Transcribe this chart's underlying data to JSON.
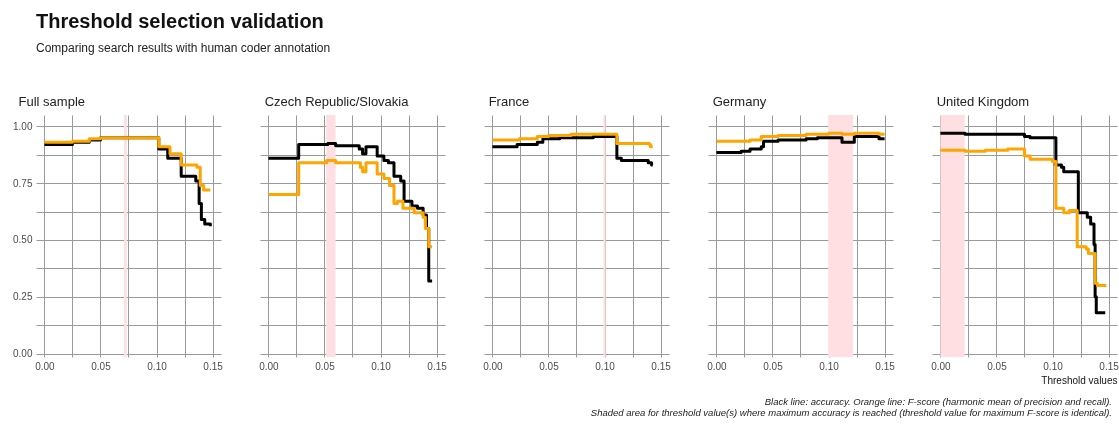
{
  "chart_data": [
    {
      "type": "other",
      "title": "Threshold selection validation",
      "subtitle": "Comparing search results with human coder annotation"
    },
    {
      "type": "step",
      "title": "Full sample",
      "xlim": [
        -0.0075,
        0.1575
      ],
      "ylim": [
        -0.015,
        1.05
      ],
      "xticks": [
        {
          "value": 0,
          "label": "0.00"
        },
        {
          "value": 0.025,
          "label": null
        },
        {
          "value": 0.05,
          "label": "0.05"
        },
        {
          "value": 0.075,
          "label": null
        },
        {
          "value": 0.1,
          "label": "0.10"
        },
        {
          "value": 0.125,
          "label": null
        },
        {
          "value": 0.15,
          "label": "0.15"
        }
      ],
      "yticks": [
        {
          "value": 0,
          "label": "0.00"
        },
        {
          "value": 0.125,
          "label": null
        },
        {
          "value": 0.25,
          "label": "0.25"
        },
        {
          "value": 0.375,
          "label": null
        },
        {
          "value": 0.5,
          "label": "0.50"
        },
        {
          "value": 0.625,
          "label": null
        },
        {
          "value": 0.75,
          "label": "0.75"
        },
        {
          "value": 0.875,
          "label": null
        },
        {
          "value": 1,
          "label": "1.00"
        }
      ],
      "grid": true,
      "bands": [
        {
          "axis": "x",
          "from": 0.071,
          "to": 0.0735,
          "color": "#ffdfe2"
        }
      ],
      "series": [
        {
          "color": "#000000",
          "x": [
            0,
            0.025,
            0.04,
            0.05,
            0.102,
            0.11,
            0.122,
            0.135,
            0.138,
            0.14,
            0.143,
            0.148
          ],
          "values": [
            0.92,
            0.93,
            0.94,
            0.95,
            0.9,
            0.86,
            0.78,
            0.76,
            0.66,
            0.59,
            0.57,
            0.56
          ]
        },
        {
          "color": "#ffa500",
          "x": [
            0,
            0.025,
            0.04,
            0.05,
            0.102,
            0.112,
            0.122,
            0.136,
            0.139,
            0.142,
            0.148
          ],
          "values": [
            0.93,
            0.935,
            0.945,
            0.95,
            0.91,
            0.88,
            0.83,
            0.82,
            0.74,
            0.72,
            0.72
          ]
        }
      ]
    },
    {
      "type": "step",
      "title": "Czech Republic/Slovakia",
      "xlim": [
        -0.0075,
        0.1575
      ],
      "ylim": [
        -0.015,
        1.05
      ],
      "tick_labels": "x",
      "xticks": [
        {
          "value": 0,
          "label": "0.00"
        },
        {
          "value": 0.025,
          "label": null
        },
        {
          "value": 0.05,
          "label": "0.05"
        },
        {
          "value": 0.075,
          "label": null
        },
        {
          "value": 0.1,
          "label": "0.10"
        },
        {
          "value": 0.125,
          "label": null
        },
        {
          "value": 0.15,
          "label": "0.15"
        }
      ],
      "yticks": [
        {
          "value": 0,
          "label": null
        },
        {
          "value": 0.125,
          "label": null
        },
        {
          "value": 0.25,
          "label": null
        },
        {
          "value": 0.375,
          "label": null
        },
        {
          "value": 0.5,
          "label": null
        },
        {
          "value": 0.625,
          "label": null
        },
        {
          "value": 0.75,
          "label": null
        },
        {
          "value": 0.875,
          "label": null
        },
        {
          "value": 1,
          "label": null
        }
      ],
      "grid": true,
      "bands": [
        {
          "axis": "x",
          "from": 0.0516,
          "to": 0.0599,
          "color": "#ffdfe2"
        }
      ],
      "series": [
        {
          "color": "#000000",
          "x": [
            0,
            0.027,
            0.053,
            0.06,
            0.081,
            0.084,
            0.087,
            0.097,
            0.103,
            0.107,
            0.112,
            0.118,
            0.121,
            0.128,
            0.133,
            0.138,
            0.141,
            0.143,
            0.146
          ],
          "values": [
            0.86,
            0.92,
            0.925,
            0.915,
            0.9,
            0.88,
            0.91,
            0.87,
            0.85,
            0.84,
            0.78,
            0.76,
            0.67,
            0.65,
            0.64,
            0.61,
            0.55,
            0.32,
            0.32
          ]
        },
        {
          "color": "#ffa500",
          "x": [
            0,
            0.027,
            0.052,
            0.06,
            0.082,
            0.084,
            0.087,
            0.097,
            0.103,
            0.108,
            0.112,
            0.115,
            0.12,
            0.13,
            0.138,
            0.14,
            0.143,
            0.146
          ],
          "values": [
            0.7,
            0.84,
            0.85,
            0.84,
            0.82,
            0.8,
            0.84,
            0.79,
            0.77,
            0.74,
            0.66,
            0.67,
            0.64,
            0.62,
            0.6,
            0.55,
            0.47,
            0.47
          ]
        }
      ]
    },
    {
      "type": "step",
      "title": "France",
      "xlim": [
        -0.0075,
        0.1575
      ],
      "ylim": [
        -0.015,
        1.05
      ],
      "tick_labels": "x",
      "xticks": [
        {
          "value": 0,
          "label": "0.00"
        },
        {
          "value": 0.025,
          "label": null
        },
        {
          "value": 0.05,
          "label": "0.05"
        },
        {
          "value": 0.075,
          "label": null
        },
        {
          "value": 0.1,
          "label": "0.10"
        },
        {
          "value": 0.125,
          "label": null
        },
        {
          "value": 0.15,
          "label": "0.15"
        }
      ],
      "yticks": [
        {
          "value": 0,
          "label": null
        },
        {
          "value": 0.125,
          "label": null
        },
        {
          "value": 0.25,
          "label": null
        },
        {
          "value": 0.375,
          "label": null
        },
        {
          "value": 0.5,
          "label": null
        },
        {
          "value": 0.625,
          "label": null
        },
        {
          "value": 0.75,
          "label": null
        },
        {
          "value": 0.875,
          "label": null
        },
        {
          "value": 1,
          "label": null
        }
      ],
      "grid": true,
      "bands": [
        {
          "axis": "x",
          "from": 0.099,
          "to": 0.101,
          "color": "#ffdfe2"
        }
      ],
      "series": [
        {
          "color": "#000000",
          "x": [
            0,
            0.022,
            0.04,
            0.045,
            0.06,
            0.09,
            0.111,
            0.115,
            0.135,
            0.139,
            0.142,
            0.143
          ],
          "values": [
            0.91,
            0.92,
            0.93,
            0.945,
            0.95,
            0.955,
            0.86,
            0.85,
            0.85,
            0.84,
            0.83,
            0.83
          ]
        },
        {
          "color": "#ffa500",
          "x": [
            0,
            0.024,
            0.04,
            0.05,
            0.07,
            0.111,
            0.14,
            0.141,
            0.143
          ],
          "values": [
            0.94,
            0.945,
            0.955,
            0.96,
            0.965,
            0.925,
            0.92,
            0.91,
            0.91
          ]
        }
      ]
    },
    {
      "type": "step",
      "title": "Germany",
      "xlim": [
        -0.0075,
        0.1575
      ],
      "ylim": [
        -0.015,
        1.05
      ],
      "tick_labels": "x",
      "xticks": [
        {
          "value": 0,
          "label": "0.00"
        },
        {
          "value": 0.025,
          "label": null
        },
        {
          "value": 0.05,
          "label": "0.05"
        },
        {
          "value": 0.075,
          "label": null
        },
        {
          "value": 0.1,
          "label": "0.10"
        },
        {
          "value": 0.125,
          "label": null
        },
        {
          "value": 0.15,
          "label": "0.15"
        }
      ],
      "yticks": [
        {
          "value": 0,
          "label": null
        },
        {
          "value": 0.125,
          "label": null
        },
        {
          "value": 0.25,
          "label": null
        },
        {
          "value": 0.375,
          "label": null
        },
        {
          "value": 0.5,
          "label": null
        },
        {
          "value": 0.625,
          "label": null
        },
        {
          "value": 0.75,
          "label": null
        },
        {
          "value": 0.875,
          "label": null
        },
        {
          "value": 1,
          "label": null
        }
      ],
      "grid": true,
      "bands": [
        {
          "axis": "x",
          "from": 0.0997,
          "to": 0.1219,
          "color": "#ffdfe2"
        }
      ],
      "series": [
        {
          "color": "#000000",
          "x": [
            0,
            0.022,
            0.03,
            0.04,
            0.042,
            0.055,
            0.08,
            0.09,
            0.112,
            0.123,
            0.14,
            0.145,
            0.15
          ],
          "values": [
            0.885,
            0.89,
            0.9,
            0.91,
            0.935,
            0.94,
            0.945,
            0.95,
            0.93,
            0.955,
            0.955,
            0.945,
            0.945
          ]
        },
        {
          "color": "#ffa500",
          "x": [
            0,
            0.022,
            0.03,
            0.04,
            0.055,
            0.08,
            0.1,
            0.112,
            0.123,
            0.14,
            0.145,
            0.15
          ],
          "values": [
            0.935,
            0.935,
            0.94,
            0.955,
            0.96,
            0.965,
            0.97,
            0.965,
            0.97,
            0.97,
            0.965,
            0.965
          ]
        }
      ]
    },
    {
      "type": "step",
      "title": "United Kingdom",
      "xlabel": "Threshold values",
      "xlim": [
        -0.0075,
        0.1575
      ],
      "ylim": [
        -0.015,
        1.05
      ],
      "tick_labels": "x",
      "xticks": [
        {
          "value": 0,
          "label": "0.00"
        },
        {
          "value": 0.025,
          "label": null
        },
        {
          "value": 0.05,
          "label": "0.05"
        },
        {
          "value": 0.075,
          "label": null
        },
        {
          "value": 0.1,
          "label": "0.10"
        },
        {
          "value": 0.125,
          "label": null
        },
        {
          "value": 0.15,
          "label": "0.15"
        }
      ],
      "yticks": [
        {
          "value": 0,
          "label": null
        },
        {
          "value": 0.125,
          "label": null
        },
        {
          "value": 0.25,
          "label": null
        },
        {
          "value": 0.375,
          "label": null
        },
        {
          "value": 0.5,
          "label": null
        },
        {
          "value": 0.625,
          "label": null
        },
        {
          "value": 0.75,
          "label": null
        },
        {
          "value": 0.875,
          "label": null
        },
        {
          "value": 1,
          "label": null
        }
      ],
      "grid": true,
      "bands": [
        {
          "axis": "x",
          "from": 0,
          "to": 0.0216,
          "color": "#ffdfe2"
        }
      ],
      "series": [
        {
          "color": "#000000",
          "x": [
            0,
            0.022,
            0.075,
            0.08,
            0.103,
            0.108,
            0.11,
            0.123,
            0.131,
            0.134,
            0.137,
            0.138,
            0.139,
            0.147
          ],
          "values": [
            0.97,
            0.965,
            0.955,
            0.95,
            0.83,
            0.82,
            0.8,
            0.62,
            0.6,
            0.57,
            0.48,
            0.25,
            0.18,
            0.18
          ]
        },
        {
          "color": "#ffa500",
          "x": [
            0,
            0.022,
            0.04,
            0.06,
            0.075,
            0.08,
            0.1,
            0.103,
            0.11,
            0.115,
            0.122,
            0.13,
            0.132,
            0.138,
            0.14,
            0.148
          ],
          "values": [
            0.895,
            0.89,
            0.895,
            0.9,
            0.87,
            0.855,
            0.845,
            0.64,
            0.62,
            0.63,
            0.47,
            0.46,
            0.44,
            0.31,
            0.3,
            0.3
          ]
        }
      ],
      "annotations": [
        "Black line: accuracy. Orange line: F-score (harmonic mean of precision and recall).",
        "Shaded area for threshold value(s) where maximum accuracy is reached (threshold value for maximum F-score is identical)."
      ]
    }
  ]
}
